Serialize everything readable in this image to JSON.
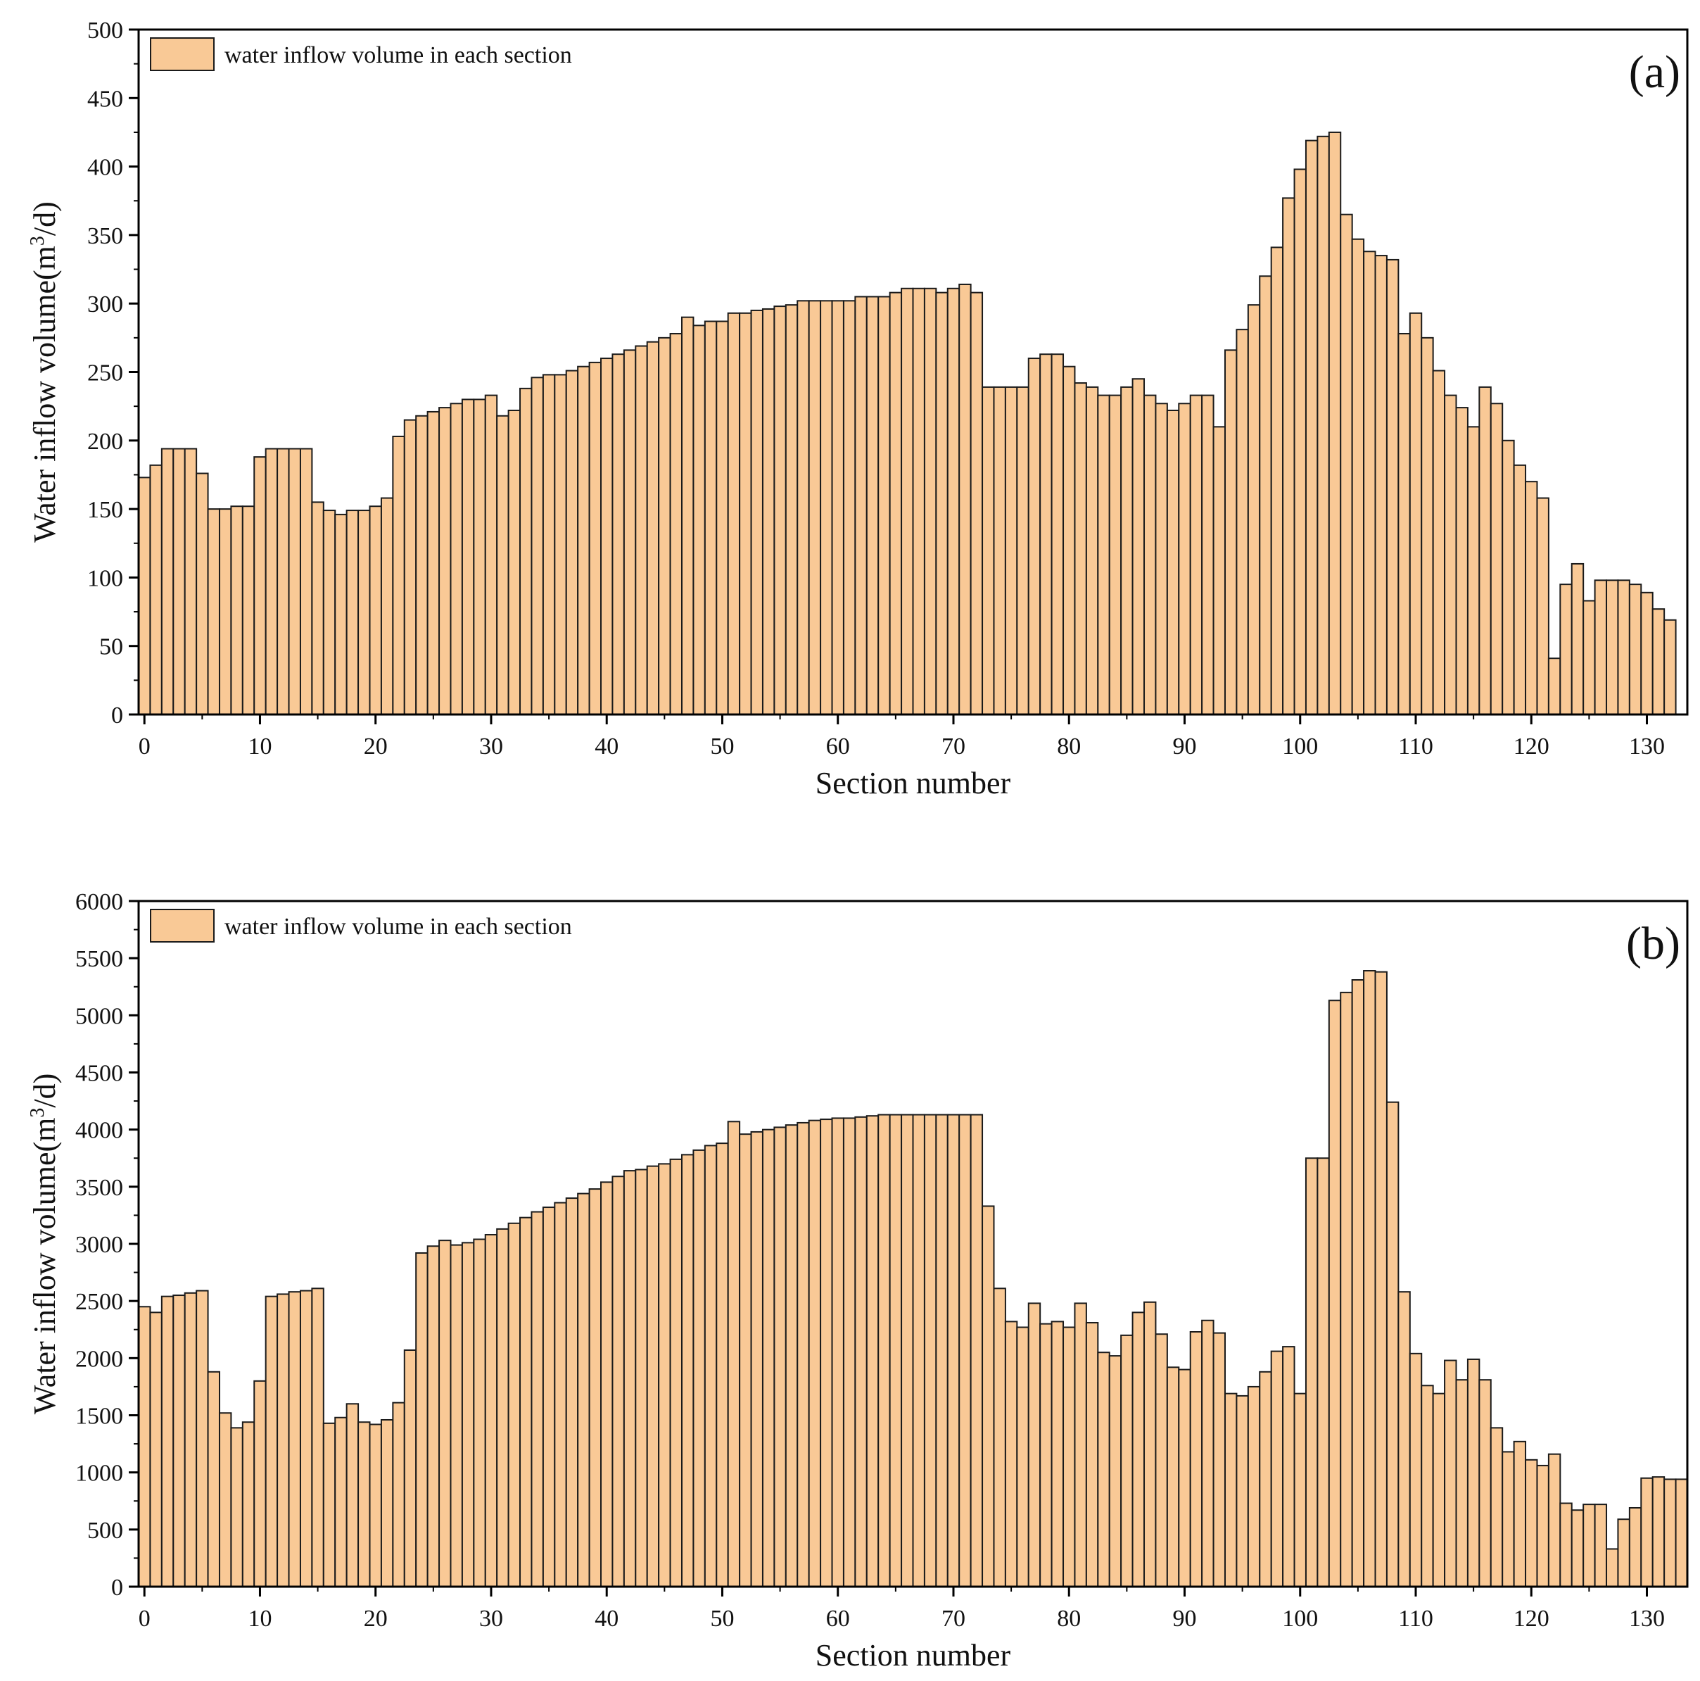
{
  "figure": {
    "title": "Water inflow volume in each section"
  },
  "colors": {
    "bar_fill": "#F9C996",
    "bar_edge": "#1a1a1a",
    "axis": "#000000",
    "background": "#ffffff"
  },
  "chart_data": [
    {
      "type": "bar",
      "panel_label": "(a)",
      "title": "",
      "xlabel": "Section number",
      "ylabel_prefix": "Water inflow volume(m",
      "ylabel_sup": "3",
      "ylabel_suffix": "/d)",
      "legend": "water inflow volume in each section",
      "legend_position": "top-left",
      "xlim": [
        -0.5,
        133.5
      ],
      "ylim": [
        0,
        500
      ],
      "xticks": [
        0,
        10,
        20,
        30,
        40,
        50,
        60,
        70,
        80,
        90,
        100,
        110,
        120,
        130
      ],
      "yticks": [
        0,
        50,
        100,
        150,
        200,
        250,
        300,
        350,
        400,
        450,
        500
      ],
      "categories_start": 0,
      "values": [
        173,
        182,
        194,
        194,
        194,
        176,
        150,
        150,
        152,
        152,
        188,
        194,
        194,
        194,
        194,
        155,
        149,
        146,
        149,
        149,
        152,
        158,
        203,
        215,
        218,
        221,
        224,
        227,
        230,
        230,
        233,
        218,
        222,
        238,
        246,
        248,
        248,
        251,
        254,
        257,
        260,
        263,
        266,
        269,
        272,
        275,
        278,
        290,
        284,
        287,
        287,
        293,
        293,
        295,
        296,
        298,
        299,
        302,
        302,
        302,
        302,
        302,
        305,
        305,
        305,
        308,
        311,
        311,
        311,
        308,
        311,
        314,
        308,
        239,
        239,
        239,
        239,
        260,
        263,
        263,
        254,
        242,
        239,
        233,
        233,
        239,
        245,
        233,
        227,
        222,
        227,
        233,
        233,
        210,
        266,
        281,
        299,
        320,
        341,
        377,
        398,
        419,
        422,
        425,
        365,
        347,
        338,
        335,
        332,
        278,
        293,
        275,
        251,
        233,
        224,
        210,
        239,
        227,
        200,
        182,
        170,
        158,
        41,
        95,
        110,
        83,
        98,
        98,
        98,
        95,
        89,
        77,
        69
      ]
    },
    {
      "type": "bar",
      "panel_label": "(b)",
      "title": "",
      "xlabel": "Section number",
      "ylabel_prefix": "Water inflow volume(m",
      "ylabel_sup": "3",
      "ylabel_suffix": "/d)",
      "legend": "water inflow volume in each section",
      "legend_position": "top-left",
      "xlim": [
        -0.5,
        133.5
      ],
      "ylim": [
        0,
        6000
      ],
      "xticks": [
        0,
        10,
        20,
        30,
        40,
        50,
        60,
        70,
        80,
        90,
        100,
        110,
        120,
        130
      ],
      "yticks": [
        0,
        500,
        1000,
        1500,
        2000,
        2500,
        3000,
        3500,
        4000,
        4500,
        5000,
        5500,
        6000
      ],
      "categories_start": 0,
      "values": [
        2450,
        2400,
        2540,
        2550,
        2570,
        2590,
        1880,
        1520,
        1390,
        1440,
        1800,
        2540,
        2560,
        2580,
        2590,
        2610,
        1430,
        1480,
        1600,
        1440,
        1420,
        1460,
        1610,
        2070,
        2920,
        2980,
        3030,
        2990,
        3010,
        3040,
        3080,
        3130,
        3180,
        3230,
        3280,
        3320,
        3360,
        3400,
        3440,
        3480,
        3540,
        3590,
        3640,
        3650,
        3680,
        3700,
        3740,
        3780,
        3820,
        3860,
        3880,
        4070,
        3960,
        3980,
        4000,
        4020,
        4040,
        4060,
        4080,
        4090,
        4100,
        4100,
        4110,
        4120,
        4130,
        4130,
        4130,
        4130,
        4130,
        4130,
        4130,
        4130,
        4130,
        3330,
        2610,
        2320,
        2270,
        2480,
        2300,
        2320,
        2270,
        2480,
        2310,
        2050,
        2020,
        2200,
        2400,
        2490,
        2210,
        1920,
        1900,
        2230,
        2330,
        2220,
        1690,
        1670,
        1750,
        1880,
        2060,
        2100,
        1690,
        3750,
        3750,
        5130,
        5200,
        5310,
        5390,
        5380,
        4240,
        2580,
        2040,
        1760,
        1690,
        1980,
        1810,
        1990,
        1810,
        1390,
        1180,
        1270,
        1110,
        1060,
        1160,
        730,
        670,
        720,
        720,
        330,
        590,
        690,
        950,
        960,
        940,
        940
      ]
    }
  ]
}
